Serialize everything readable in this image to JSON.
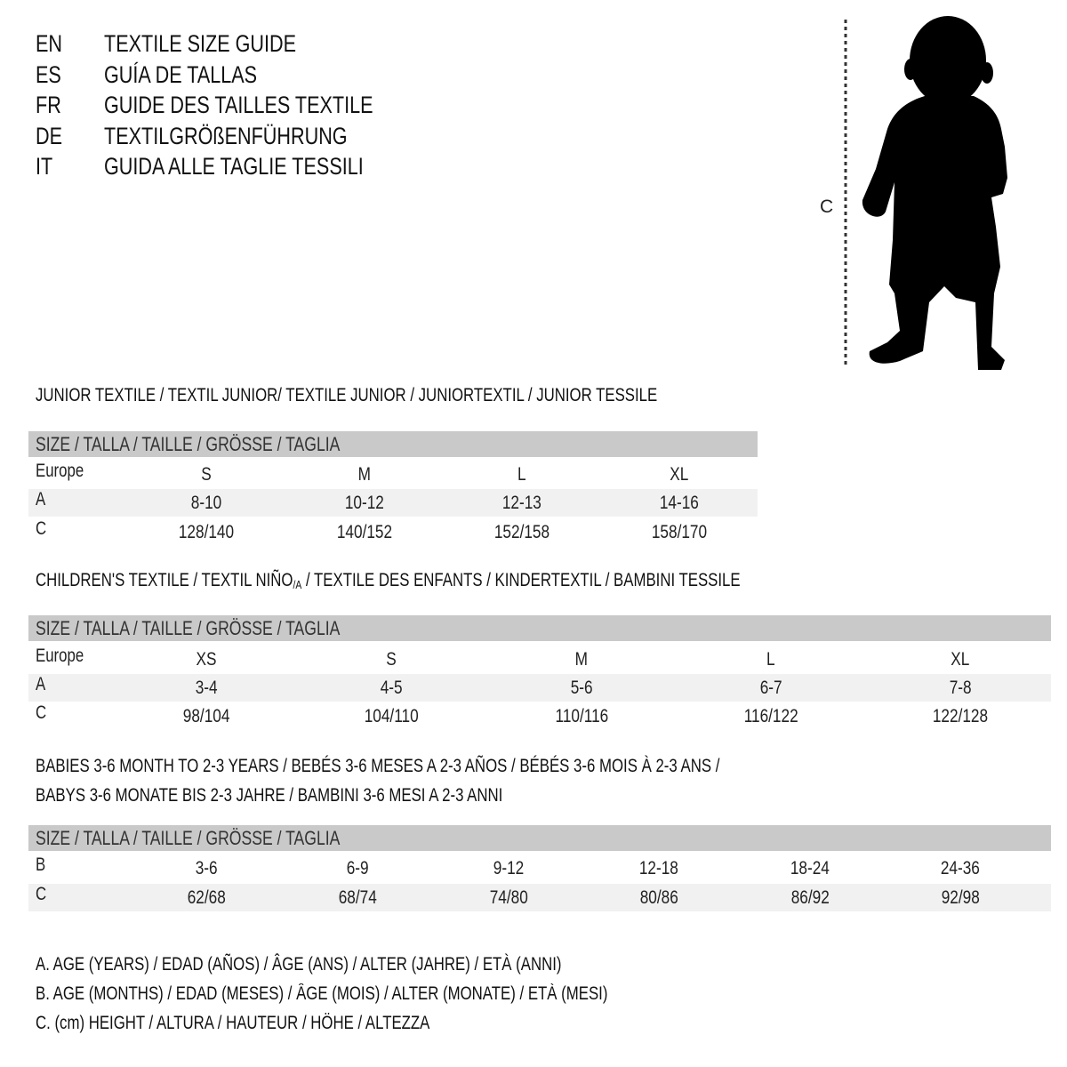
{
  "titles": [
    {
      "lang": "EN",
      "text": "TEXTILE SIZE GUIDE"
    },
    {
      "lang": "ES",
      "text": "GUÍA DE TALLAS"
    },
    {
      "lang": "FR",
      "text": "GUIDE DES TAILLES TEXTILE"
    },
    {
      "lang": "DE",
      "text": "TEXTILGRÖßENFÜHRUNG"
    },
    {
      "lang": "IT",
      "text": "GUIDA ALLE TAGLIE TESSILI"
    }
  ],
  "figure": {
    "measure_label": "C"
  },
  "size_header": "SIZE / TALLA / TAILLE / GRÖSSE / TAGLIA",
  "junior": {
    "heading": "JUNIOR TEXTILE / TEXTIL JUNIOR/ TEXTILE JUNIOR / JUNIORTEXTIL / JUNIOR TESSILE",
    "rows": [
      {
        "label": "Europe",
        "values": [
          "S",
          "M",
          "L",
          "XL"
        ]
      },
      {
        "label": "A",
        "values": [
          "8-10",
          "10-12",
          "12-13",
          "14-16"
        ]
      },
      {
        "label": "C",
        "values": [
          "128/140",
          "140/152",
          "152/158",
          "158/170"
        ]
      }
    ]
  },
  "children": {
    "heading_pre": "CHILDREN'S TEXTILE / TEXTIL NIÑO",
    "heading_sub": "/A",
    "heading_post": " / TEXTILE DES ENFANTS / KINDERTEXTIL / BAMBINI TESSILE",
    "rows": [
      {
        "label": "Europe",
        "values": [
          "XS",
          "S",
          "M",
          "L",
          "XL"
        ]
      },
      {
        "label": "A",
        "values": [
          "3-4",
          "4-5",
          "5-6",
          "6-7",
          "7-8"
        ]
      },
      {
        "label": "C",
        "values": [
          "98/104",
          "104/110",
          "110/116",
          "116/122",
          "122/128"
        ]
      }
    ]
  },
  "babies": {
    "heading_line1": "BABIES 3-6 MONTH TO 2-3 YEARS / BEBÉS 3-6 MESES A 2-3 AÑOS / BÉBÉS 3-6 MOIS À 2-3 ANS /",
    "heading_line2": "BABYS 3-6 MONATE BIS 2-3 JAHRE / BAMBINI 3-6 MESI A 2-3 ANNI",
    "rows": [
      {
        "label": "B",
        "values": [
          "3-6",
          "6-9",
          "9-12",
          "12-18",
          "18-24",
          "24-36"
        ]
      },
      {
        "label": "C",
        "values": [
          "62/68",
          "68/74",
          "74/80",
          "80/86",
          "86/92",
          "92/98"
        ]
      }
    ]
  },
  "legend": [
    "A. AGE (YEARS) / EDAD (AÑOS) / ÂGE (ANS) / ALTER (JAHRE) / ETÀ (ANNI)",
    "B. AGE (MONTHS) / EDAD (MESES) / ÂGE (MOIS) / ALTER (MONATE) / ETÀ (MESI)",
    "C. (cm) HEIGHT / ALTURA / HAUTEUR / HÖHE / ALTEZZA"
  ],
  "colors": {
    "header_bg": "#c9c9c9",
    "stripe_bg": "#f1f1f1",
    "text": "#111111"
  }
}
